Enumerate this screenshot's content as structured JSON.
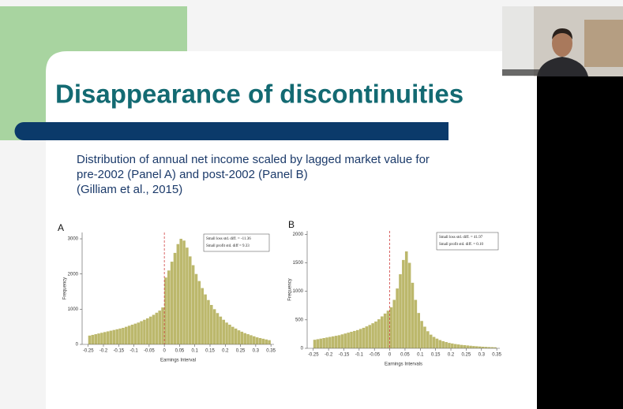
{
  "slide": {
    "title": "Disappearance of discontinuities",
    "text": [
      "Distribution of annual net income scaled by lagged market value for",
      "pre-2002 (Panel A) and post-2002 (Panel B)",
      "(Gilliam et al., 2015)"
    ]
  },
  "chart_data": [
    {
      "type": "histogram",
      "panel": "A",
      "xlabel": "Earnings Interval",
      "ylabel": "Frequency",
      "legend": [
        "Small loss std. diff. = -11.36",
        "Small profit std. diff = 9.33"
      ],
      "bins": [
        -0.25,
        -0.24,
        -0.23,
        -0.22,
        -0.21,
        -0.2,
        -0.19,
        -0.18,
        -0.17,
        -0.16,
        -0.15,
        -0.14,
        -0.13,
        -0.12,
        -0.11,
        -0.1,
        -0.09,
        -0.08,
        -0.07,
        -0.06,
        -0.05,
        -0.04,
        -0.03,
        -0.02,
        -0.01,
        0,
        0.01,
        0.02,
        0.03,
        0.04,
        0.05,
        0.06,
        0.07,
        0.08,
        0.09,
        0.1,
        0.11,
        0.12,
        0.13,
        0.14,
        0.15,
        0.16,
        0.17,
        0.18,
        0.19,
        0.2,
        0.21,
        0.22,
        0.23,
        0.24,
        0.25,
        0.26,
        0.27,
        0.28,
        0.29,
        0.3,
        0.31,
        0.32,
        0.33,
        0.34,
        0.35
      ],
      "values": [
        250,
        270,
        290,
        310,
        330,
        350,
        370,
        390,
        410,
        430,
        450,
        470,
        500,
        530,
        560,
        590,
        620,
        660,
        700,
        740,
        790,
        840,
        900,
        960,
        1050,
        1900,
        2100,
        2350,
        2600,
        2850,
        3000,
        2950,
        2750,
        2500,
        2250,
        2000,
        1800,
        1600,
        1420,
        1260,
        1120,
        1000,
        890,
        790,
        700,
        620,
        560,
        500,
        450,
        400,
        360,
        320,
        290,
        260,
        230,
        200,
        180,
        160,
        140,
        120
      ],
      "color": "#bcb86c",
      "vline": 0,
      "vline_color": "#d04040",
      "xlim": [
        -0.27,
        0.36
      ],
      "xticks": [
        -0.25,
        -0.2,
        -0.15,
        -0.1,
        -0.05,
        0,
        0.05,
        0.1,
        0.15,
        0.2,
        0.25,
        0.3,
        0.35
      ],
      "ylim": [
        0,
        3180
      ],
      "yticks": [
        0,
        1000,
        2000,
        3000
      ]
    },
    {
      "type": "histogram",
      "panel": "B",
      "xlabel": "Earnings Intervals",
      "ylabel": "Frequency",
      "legend": [
        "Small loss std. diff. = 41.97",
        "Small profit std. diff. = 0.10"
      ],
      "bins": [
        -0.25,
        -0.24,
        -0.23,
        -0.22,
        -0.21,
        -0.2,
        -0.19,
        -0.18,
        -0.17,
        -0.16,
        -0.15,
        -0.14,
        -0.13,
        -0.12,
        -0.11,
        -0.1,
        -0.09,
        -0.08,
        -0.07,
        -0.06,
        -0.05,
        -0.04,
        -0.03,
        -0.02,
        -0.01,
        0,
        0.01,
        0.02,
        0.03,
        0.04,
        0.05,
        0.06,
        0.07,
        0.08,
        0.09,
        0.1,
        0.11,
        0.12,
        0.13,
        0.14,
        0.15,
        0.16,
        0.17,
        0.18,
        0.19,
        0.2,
        0.21,
        0.22,
        0.23,
        0.24,
        0.25,
        0.26,
        0.27,
        0.28,
        0.29,
        0.3,
        0.31,
        0.32,
        0.33,
        0.34,
        0.35
      ],
      "values": [
        150,
        160,
        170,
        180,
        190,
        200,
        210,
        220,
        230,
        245,
        260,
        275,
        290,
        305,
        320,
        340,
        360,
        385,
        410,
        440,
        470,
        510,
        560,
        610,
        660,
        720,
        850,
        1050,
        1300,
        1550,
        1700,
        1500,
        1150,
        850,
        620,
        480,
        380,
        300,
        240,
        200,
        170,
        145,
        125,
        110,
        95,
        85,
        75,
        68,
        60,
        55,
        50,
        45,
        40,
        36,
        32,
        28,
        25,
        22,
        20,
        18
      ],
      "color": "#bcb86c",
      "vline": 0,
      "vline_color": "#d04040",
      "xlim": [
        -0.27,
        0.36
      ],
      "xticks": [
        -0.25,
        -0.2,
        -0.15,
        -0.1,
        -0.05,
        0,
        0.05,
        0.1,
        0.15,
        0.2,
        0.25,
        0.3,
        0.35
      ],
      "ylim": [
        0,
        2060
      ],
      "yticks": [
        0,
        500,
        1000,
        1500,
        2000
      ]
    }
  ]
}
